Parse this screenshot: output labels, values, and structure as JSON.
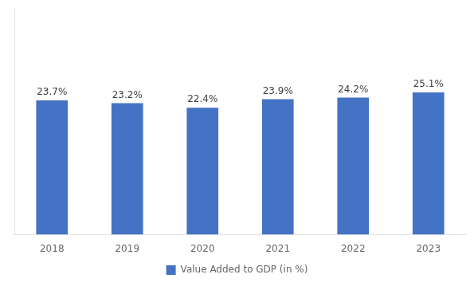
{
  "chart_data": {
    "type": "bar",
    "categories": [
      "2018",
      "2019",
      "2020",
      "2021",
      "2022",
      "2023"
    ],
    "series": [
      {
        "name": "Value Added to GDP (in %)",
        "color": "#4472C4",
        "values": [
          23.7,
          23.2,
          22.4,
          23.9,
          24.2,
          25.1
        ],
        "value_labels": [
          "23.7%",
          "23.2%",
          "22.4%",
          "23.9%",
          "24.2%",
          "25.1%"
        ]
      }
    ],
    "ylim": [
      0,
      40
    ],
    "tick_labels": "x",
    "grid": false,
    "legend": "bottom",
    "data_labels": true
  }
}
